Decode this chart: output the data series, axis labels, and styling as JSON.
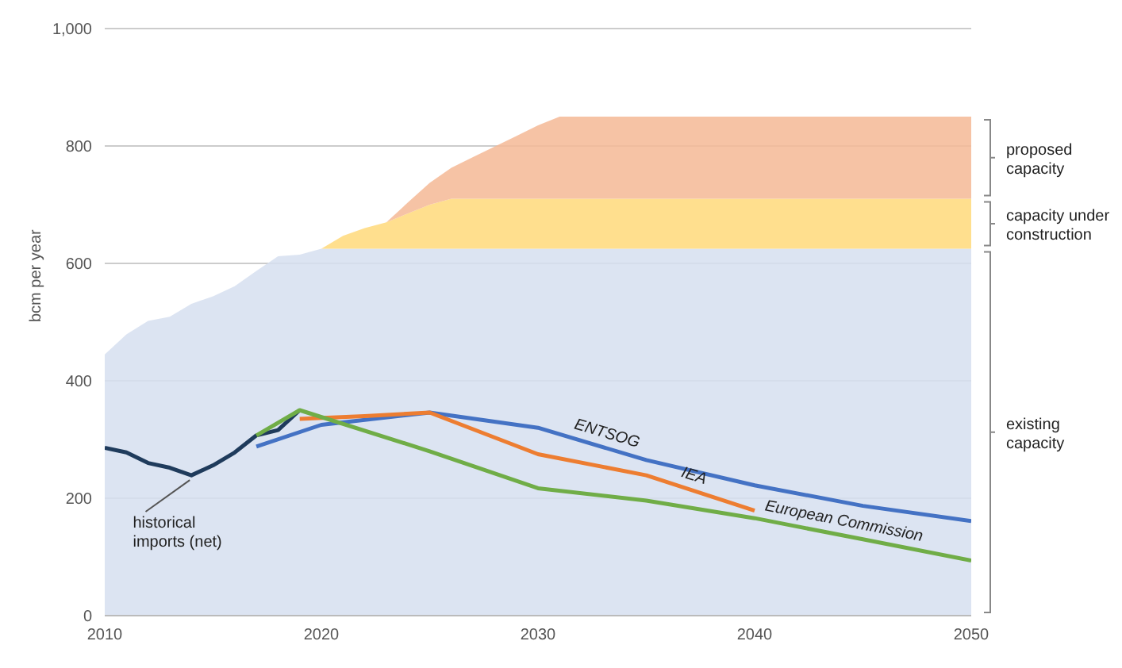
{
  "chart_data": {
    "type": "area",
    "stacked": true,
    "ylabel": "bcm per year",
    "x": [
      2010,
      2011,
      2012,
      2013,
      2014,
      2015,
      2016,
      2017,
      2018,
      2019,
      2020,
      2021,
      2022,
      2023,
      2024,
      2025,
      2026,
      2027,
      2028,
      2029,
      2030,
      2031,
      2032,
      2033,
      2034,
      2035,
      2036,
      2037,
      2038,
      2039,
      2040,
      2041,
      2042,
      2043,
      2044,
      2045,
      2046,
      2047,
      2048,
      2049,
      2050
    ],
    "xlim": [
      2010,
      2050
    ],
    "xticks": [
      2010,
      2020,
      2030,
      2040,
      2050
    ],
    "ylim": [
      0,
      1000
    ],
    "yticks": [
      0,
      200,
      400,
      600,
      800,
      {
        "value": 1000,
        "label": "1,000"
      }
    ],
    "grid": "y",
    "legend": false,
    "series": [
      {
        "name": "existing capacity",
        "color": "#d6dff0",
        "values": [
          445,
          479,
          502,
          509,
          531,
          544,
          561,
          587,
          612,
          615,
          625,
          625,
          625,
          625,
          625,
          625,
          625,
          625,
          625,
          625,
          625,
          625,
          625,
          625,
          625,
          625,
          625,
          625,
          625,
          625,
          625,
          625,
          625,
          625,
          625,
          625,
          625,
          625,
          625,
          625,
          625
        ]
      },
      {
        "name": "capacity under construction",
        "color": "#ffd97a",
        "values": [
          0,
          0,
          0,
          0,
          0,
          0,
          0,
          0,
          0,
          0,
          0,
          22,
          35,
          45,
          60,
          75,
          85,
          85,
          85,
          85,
          85,
          85,
          85,
          85,
          85,
          85,
          85,
          85,
          85,
          85,
          85,
          85,
          85,
          85,
          85,
          85,
          85,
          85,
          85,
          85,
          85
        ]
      },
      {
        "name": "proposed capacity",
        "color": "#f5b895",
        "values": [
          0,
          0,
          0,
          0,
          0,
          0,
          0,
          0,
          0,
          0,
          0,
          0,
          0,
          0,
          19,
          37,
          53,
          71,
          89,
          107,
          125,
          140,
          140,
          140,
          140,
          140,
          140,
          140,
          140,
          140,
          140,
          140,
          140,
          140,
          140,
          140,
          140,
          140,
          140,
          140,
          140
        ]
      },
      {
        "name": "historical imports (net)",
        "type": "line",
        "color": "#1f3b5c",
        "x": [
          2010,
          2011,
          2012,
          2013,
          2014,
          2015,
          2016,
          2017,
          2018,
          2019
        ],
        "values": [
          286,
          278,
          260,
          252,
          239,
          256,
          278,
          307,
          316,
          350
        ]
      },
      {
        "name": "ENTSOG",
        "type": "line",
        "color": "#4472c4",
        "x": [
          2017,
          2020,
          2025,
          2030,
          2035,
          2040,
          2045,
          2050
        ],
        "values": [
          288,
          325,
          346,
          320,
          265,
          222,
          187,
          161
        ]
      },
      {
        "name": "IEA",
        "type": "line",
        "color": "#ed7d31",
        "x": [
          2019,
          2022,
          2025,
          2030,
          2035,
          2040
        ],
        "values": [
          335,
          340,
          346,
          275,
          239,
          179
        ]
      },
      {
        "name": "European Commission",
        "type": "line",
        "color": "#70ad47",
        "x": [
          2017,
          2019,
          2025,
          2030,
          2035,
          2040,
          2045,
          2050
        ],
        "values": [
          307,
          350,
          280,
          217,
          196,
          166,
          130,
          94
        ]
      }
    ]
  }
}
